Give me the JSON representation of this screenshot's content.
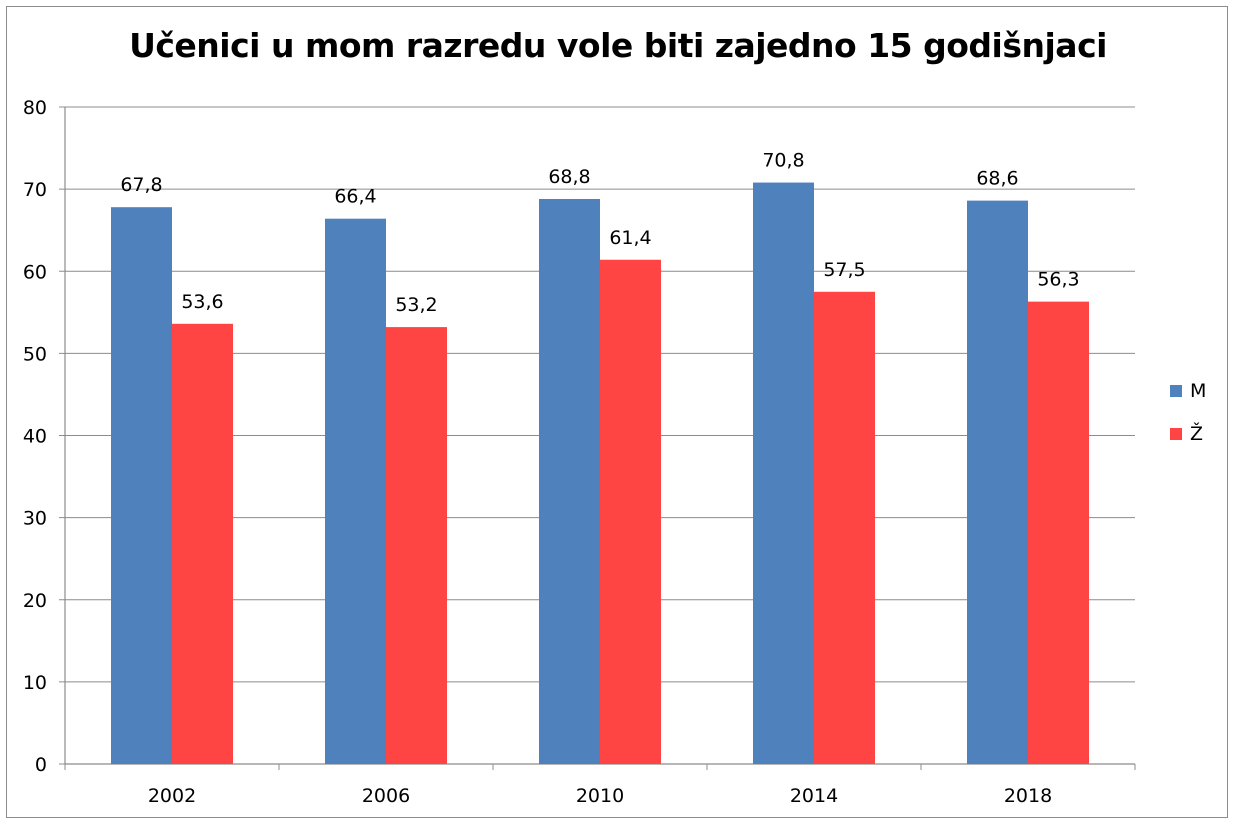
{
  "chart_data": {
    "type": "bar",
    "title": "Učenici u mom razredu vole biti zajedno 15 godišnjaci",
    "xlabel": "",
    "ylabel": "",
    "categories": [
      "2002",
      "2006",
      "2010",
      "2014",
      "2018"
    ],
    "series": [
      {
        "name": "M",
        "color": "#4f81bd",
        "values": [
          67.8,
          66.4,
          68.8,
          70.8,
          68.6
        ],
        "labels": [
          "67,8",
          "66,4",
          "68,8",
          "70,8",
          "68,6"
        ]
      },
      {
        "name": "Ž",
        "color": "#ff4444",
        "values": [
          53.6,
          53.2,
          61.4,
          57.5,
          56.3
        ],
        "labels": [
          "53,6",
          "53,2",
          "61,4",
          "57,5",
          "56,3"
        ]
      }
    ],
    "ylim": [
      0,
      80
    ],
    "yticks": [
      "0",
      "10",
      "20",
      "30",
      "40",
      "50",
      "60",
      "70",
      "80"
    ],
    "grid": true,
    "legend_position": "right"
  }
}
